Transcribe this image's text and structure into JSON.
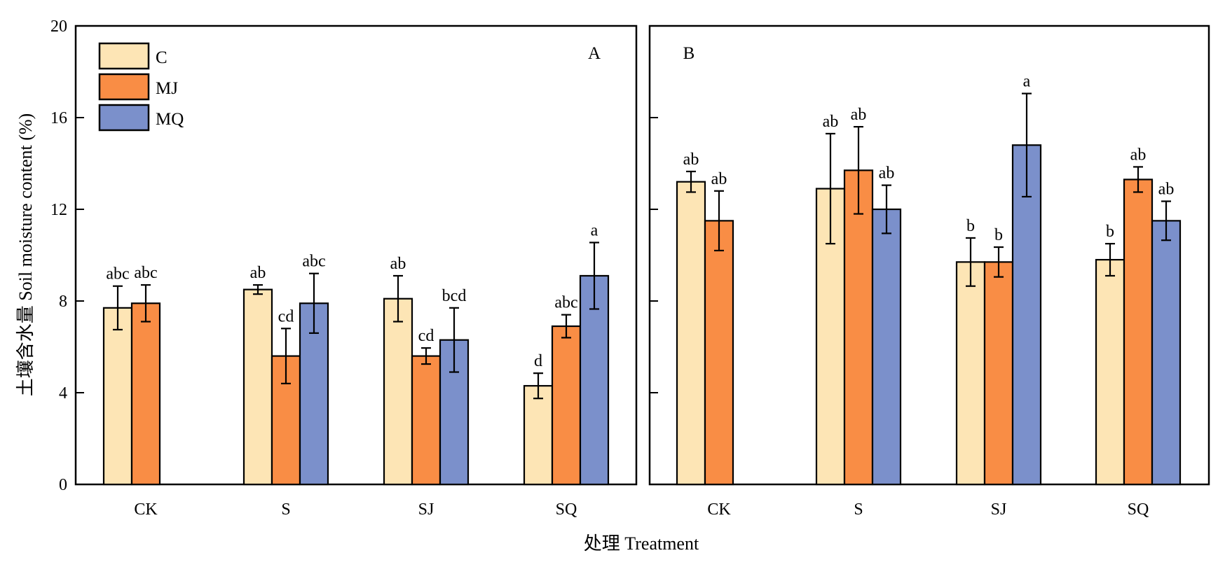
{
  "chart_data": {
    "type": "bar",
    "ylabel": "土壤含水量 Soil moisture content (%)",
    "xlabel": "处理 Treatment",
    "ylim": [
      0,
      20
    ],
    "yticks": [
      "0",
      "4",
      "8",
      "12",
      "16",
      "20"
    ],
    "categories": [
      "CK",
      "S",
      "SJ",
      "SQ"
    ],
    "series_names": [
      "C",
      "MJ",
      "MQ"
    ],
    "colors": {
      "C": "#fde5b5",
      "MJ": "#f98d45",
      "MQ": "#7b90cb"
    },
    "legend_position": "top-left",
    "panels": [
      {
        "label": "A",
        "series": [
          {
            "name": "C",
            "values": [
              7.7,
              8.5,
              8.1,
              4.3
            ],
            "errors": [
              0.95,
              0.2,
              1.0,
              0.55
            ],
            "letters": [
              "abc",
              "ab",
              "ab",
              "d"
            ]
          },
          {
            "name": "MJ",
            "values": [
              7.9,
              5.6,
              5.6,
              6.9
            ],
            "errors": [
              0.8,
              1.2,
              0.35,
              0.5
            ],
            "letters": [
              "abc",
              "cd",
              "cd",
              "abc"
            ]
          },
          {
            "name": "MQ",
            "values": [
              null,
              7.9,
              6.3,
              9.1
            ],
            "errors": [
              null,
              1.3,
              1.4,
              1.45
            ],
            "letters": [
              "",
              "abc",
              "bcd",
              "a"
            ]
          }
        ]
      },
      {
        "label": "B",
        "series": [
          {
            "name": "C",
            "values": [
              13.2,
              12.9,
              9.7,
              9.8
            ],
            "errors": [
              0.45,
              2.4,
              1.05,
              0.7
            ],
            "letters": [
              "ab",
              "ab",
              "b",
              "b"
            ]
          },
          {
            "name": "MJ",
            "values": [
              11.5,
              13.7,
              9.7,
              13.3
            ],
            "errors": [
              1.3,
              1.9,
              0.65,
              0.55
            ],
            "letters": [
              "ab",
              "ab",
              "b",
              "ab"
            ]
          },
          {
            "name": "MQ",
            "values": [
              null,
              12.0,
              14.8,
              11.5
            ],
            "errors": [
              null,
              1.05,
              2.25,
              0.85
            ],
            "letters": [
              "",
              "ab",
              "a",
              "ab"
            ]
          }
        ]
      }
    ]
  }
}
